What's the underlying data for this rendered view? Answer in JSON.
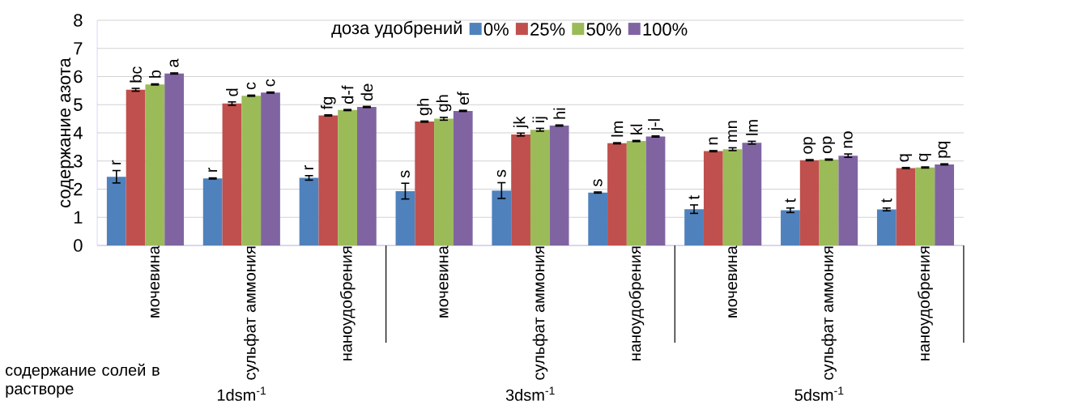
{
  "chart_data": {
    "type": "bar",
    "ylabel": "содержание азота",
    "xlabel": "содержание солей в растворе",
    "legend_title": "доза удобрений",
    "categories": [
      "мочевина",
      "сульфат аммония",
      "наноудобрения",
      "мочевина",
      "сульфат аммония",
      "наноудобрения",
      "мочевина",
      "сульфат аммония",
      "наноудобрения"
    ],
    "series": [
      {
        "name": "0%",
        "color": "#4f81bd",
        "values": [
          2.44,
          2.38,
          2.4,
          1.93,
          1.95,
          1.88,
          1.29,
          1.25,
          1.28
        ],
        "errors": [
          0.22,
          0.02,
          0.08,
          0.28,
          0.28,
          0.02,
          0.15,
          0.08,
          0.05
        ],
        "value_labels": [
          "r",
          "r",
          "r",
          "s",
          "s",
          "s",
          "t",
          "t",
          "t"
        ]
      },
      {
        "name": "25%",
        "color": "#c0504d",
        "values": [
          5.53,
          5.04,
          4.62,
          4.4,
          3.94,
          3.63,
          3.35,
          3.03,
          2.75
        ],
        "errors": [
          0.05,
          0.06,
          0.02,
          0.02,
          0.05,
          0.02,
          0.02,
          0.02,
          0.02
        ],
        "value_labels": [
          "bc",
          "d",
          "fg",
          "gh",
          "jk",
          "lm",
          "n",
          "op",
          "q"
        ]
      },
      {
        "name": "50%",
        "color": "#9bbb59",
        "values": [
          5.72,
          5.32,
          4.81,
          4.5,
          4.11,
          3.71,
          3.42,
          3.05,
          2.77
        ],
        "errors": [
          0.02,
          0.02,
          0.02,
          0.05,
          0.05,
          0.02,
          0.05,
          0.02,
          0.02
        ],
        "value_labels": [
          "b",
          "c",
          "d-f",
          "gh",
          "ij",
          "kl",
          "mn",
          "op",
          "q"
        ]
      },
      {
        "name": "100%",
        "color": "#8064a2",
        "values": [
          6.11,
          5.43,
          4.92,
          4.78,
          4.26,
          3.87,
          3.65,
          3.19,
          2.88
        ],
        "errors": [
          0.02,
          0.02,
          0.02,
          0.02,
          0.02,
          0.02,
          0.05,
          0.06,
          0.02
        ],
        "value_labels": [
          "a",
          "c",
          "de",
          "ef",
          "hi",
          "j-l",
          "lm",
          "no",
          "pq"
        ]
      }
    ],
    "ylim": [
      0,
      8
    ],
    "yticks": [
      0,
      1,
      2,
      3,
      4,
      5,
      6,
      7,
      8
    ],
    "grid": "y",
    "legend": "top",
    "annotations": [
      "1dsm$^{-1}$",
      "3dsm$^{-1}$",
      "5dsm$^{-1}$"
    ]
  }
}
